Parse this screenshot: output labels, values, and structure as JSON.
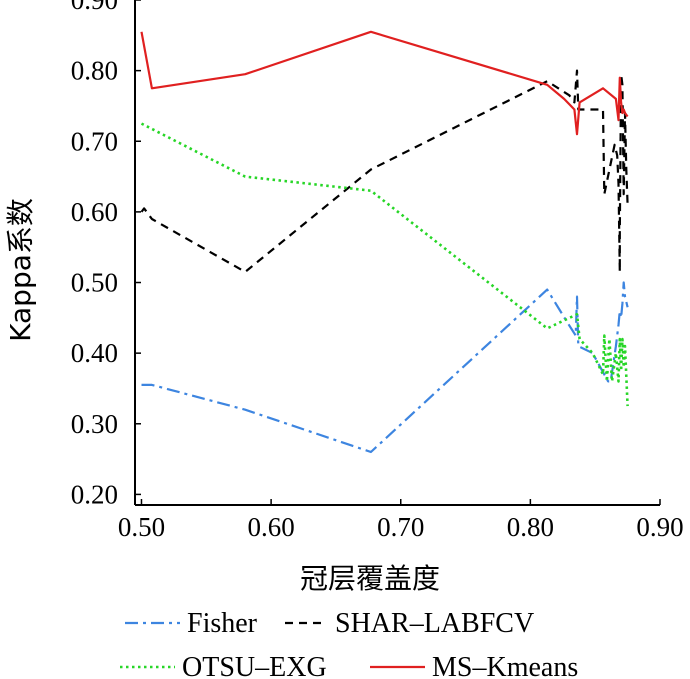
{
  "chart_data": {
    "type": "line",
    "title": "",
    "xlabel": "冠层覆盖度",
    "ylabel": "Kappa系数",
    "xlim": [
      0.495,
      0.9
    ],
    "ylim": [
      0.185,
      0.9
    ],
    "xticks": [
      "0.50",
      "0.60",
      "0.70",
      "0.80",
      "0.90"
    ],
    "xtick_values": [
      0.5,
      0.6,
      0.7,
      0.8,
      0.9
    ],
    "yticks": [
      "0.20",
      "0.30",
      "0.40",
      "0.50",
      "0.60",
      "0.70",
      "0.80",
      "0.90"
    ],
    "ytick_values": [
      0.2,
      0.3,
      0.4,
      0.5,
      0.6,
      0.7,
      0.8,
      0.9
    ],
    "grid": false,
    "legend_position": "bottom",
    "series": [
      {
        "name": "Fisher",
        "color": "#3d85e0",
        "dash": "dashdot",
        "points": [
          [
            0.5,
            0.355
          ],
          [
            0.508,
            0.355
          ],
          [
            0.58,
            0.32
          ],
          [
            0.677,
            0.26
          ],
          [
            0.813,
            0.49
          ],
          [
            0.828,
            0.445
          ],
          [
            0.835,
            0.425
          ],
          [
            0.836,
            0.48
          ],
          [
            0.837,
            0.41
          ],
          [
            0.848,
            0.4
          ],
          [
            0.86,
            0.36
          ],
          [
            0.862,
            0.36
          ],
          [
            0.866,
            0.41
          ],
          [
            0.868,
            0.44
          ],
          [
            0.869,
            0.46
          ],
          [
            0.87,
            0.45
          ],
          [
            0.871,
            0.47
          ],
          [
            0.872,
            0.5
          ],
          [
            0.873,
            0.48
          ],
          [
            0.875,
            0.465
          ]
        ]
      },
      {
        "name": "SHAR–LABFCV",
        "color": "#000000",
        "dash": "dashed",
        "points": [
          [
            0.5,
            0.6
          ],
          [
            0.502,
            0.605
          ],
          [
            0.508,
            0.59
          ],
          [
            0.58,
            0.515
          ],
          [
            0.677,
            0.66
          ],
          [
            0.813,
            0.785
          ],
          [
            0.83,
            0.765
          ],
          [
            0.834,
            0.755
          ],
          [
            0.836,
            0.8
          ],
          [
            0.837,
            0.745
          ],
          [
            0.856,
            0.745
          ],
          [
            0.857,
            0.625
          ],
          [
            0.865,
            0.695
          ],
          [
            0.867,
            0.68
          ],
          [
            0.868,
            0.64
          ],
          [
            0.869,
            0.515
          ],
          [
            0.869,
            0.57
          ],
          [
            0.87,
            0.795
          ],
          [
            0.871,
            0.78
          ],
          [
            0.872,
            0.625
          ],
          [
            0.873,
            0.74
          ],
          [
            0.874,
            0.66
          ],
          [
            0.875,
            0.61
          ]
        ]
      },
      {
        "name": "OTSU–EXG",
        "color": "#27d627",
        "dash": "dotted",
        "points": [
          [
            0.5,
            0.725
          ],
          [
            0.58,
            0.65
          ],
          [
            0.677,
            0.63
          ],
          [
            0.813,
            0.435
          ],
          [
            0.836,
            0.455
          ],
          [
            0.838,
            0.42
          ],
          [
            0.848,
            0.4
          ],
          [
            0.856,
            0.37
          ],
          [
            0.857,
            0.425
          ],
          [
            0.859,
            0.36
          ],
          [
            0.861,
            0.42
          ],
          [
            0.863,
            0.36
          ],
          [
            0.866,
            0.4
          ],
          [
            0.868,
            0.36
          ],
          [
            0.869,
            0.42
          ],
          [
            0.87,
            0.375
          ],
          [
            0.871,
            0.42
          ],
          [
            0.872,
            0.38
          ],
          [
            0.873,
            0.41
          ],
          [
            0.875,
            0.325
          ]
        ]
      },
      {
        "name": "MS–Kmeans",
        "color": "#e02020",
        "dash": "solid",
        "points": [
          [
            0.5,
            0.855
          ],
          [
            0.508,
            0.775
          ],
          [
            0.58,
            0.795
          ],
          [
            0.677,
            0.855
          ],
          [
            0.813,
            0.78
          ],
          [
            0.826,
            0.76
          ],
          [
            0.834,
            0.745
          ],
          [
            0.836,
            0.71
          ],
          [
            0.838,
            0.755
          ],
          [
            0.856,
            0.775
          ],
          [
            0.866,
            0.76
          ],
          [
            0.868,
            0.73
          ],
          [
            0.869,
            0.79
          ],
          [
            0.87,
            0.755
          ],
          [
            0.871,
            0.74
          ],
          [
            0.872,
            0.745
          ],
          [
            0.873,
            0.74
          ],
          [
            0.875,
            0.735
          ]
        ]
      }
    ]
  }
}
